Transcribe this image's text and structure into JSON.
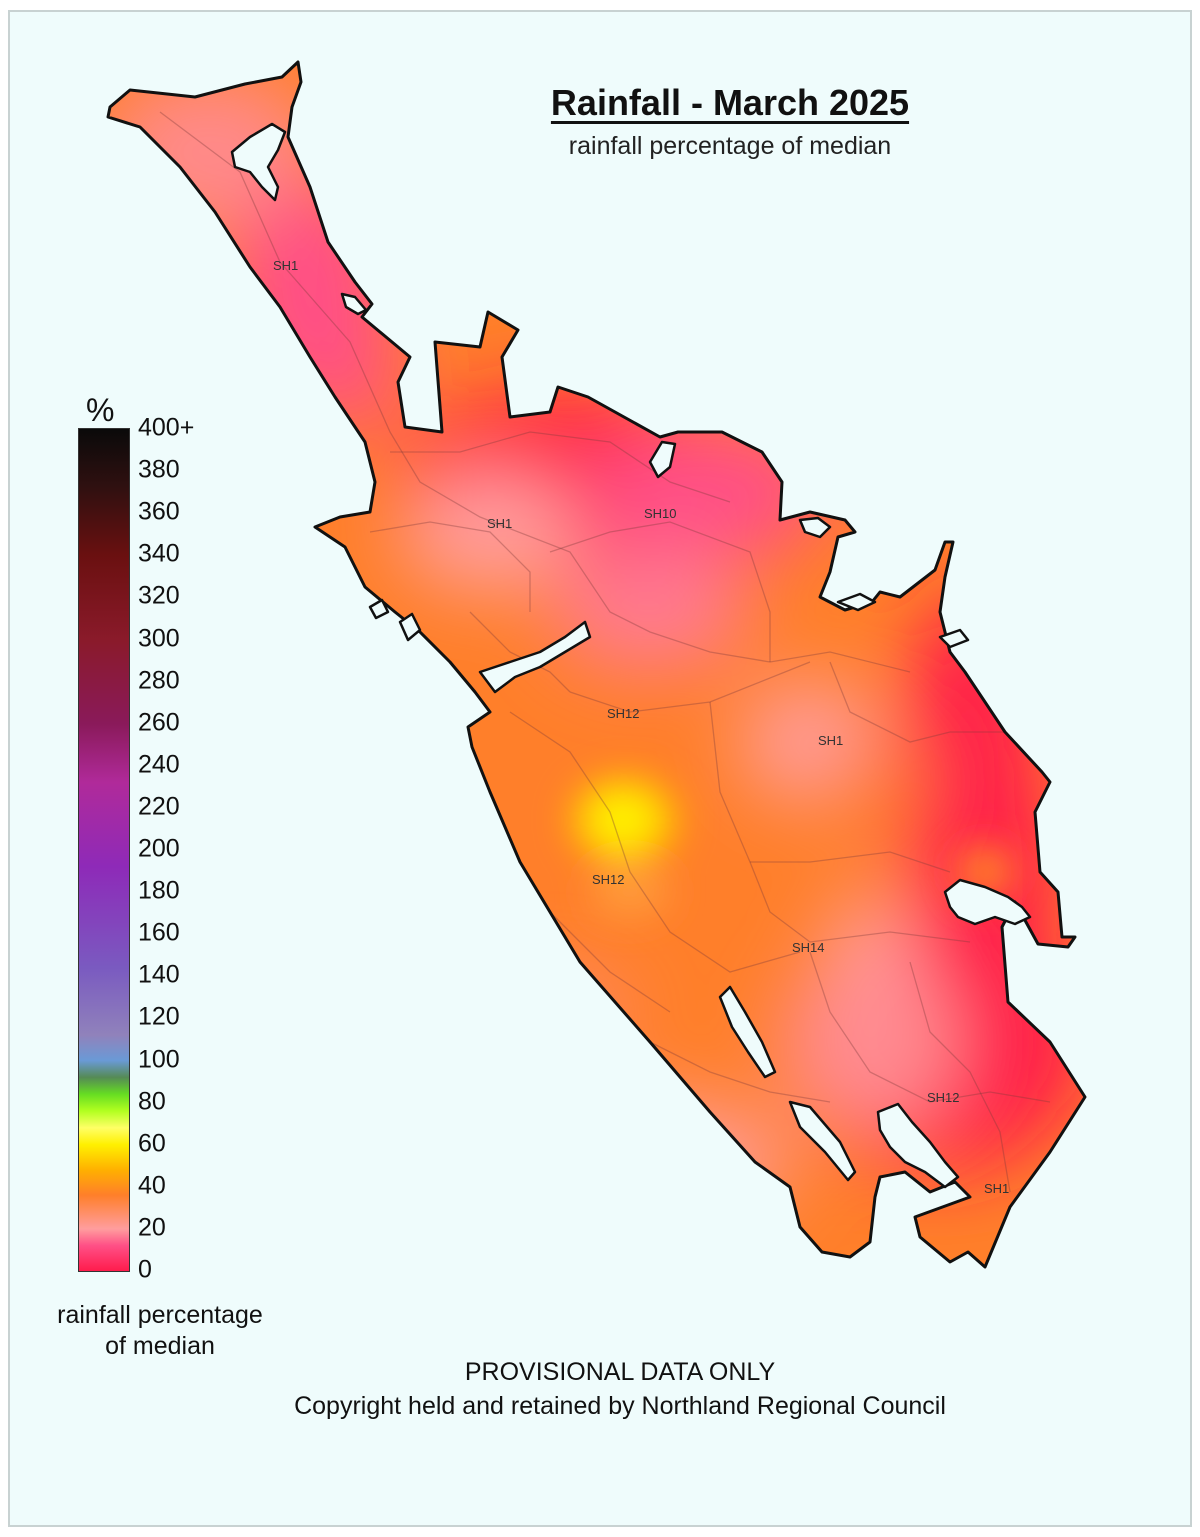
{
  "map": {
    "title": "Rainfall - March 2025",
    "subtitle": "rainfall percentage of median",
    "legend": {
      "unit": "%",
      "ticks": [
        "0",
        "20",
        "40",
        "60",
        "80",
        "100",
        "120",
        "140",
        "160",
        "180",
        "200",
        "220",
        "240",
        "260",
        "280",
        "300",
        "320",
        "340",
        "360",
        "380",
        "400+"
      ],
      "caption_line1": "rainfall percentage",
      "caption_line2": "of median"
    },
    "road_labels": [
      "SH1",
      "SH1",
      "SH10",
      "SH12",
      "SH1",
      "SH12",
      "SH14",
      "SH12",
      "SH1"
    ],
    "footer": {
      "line1": "PROVISIONAL DATA ONLY",
      "line2": "Copyright held and retained by Northland Regional Council"
    },
    "colors": {
      "background": "#effcfc",
      "land_base": "#ff7f2a",
      "very_dry": "#ff1c4c",
      "dry_pink": "#ff4f86",
      "wet_yellow": "#fff000"
    }
  }
}
